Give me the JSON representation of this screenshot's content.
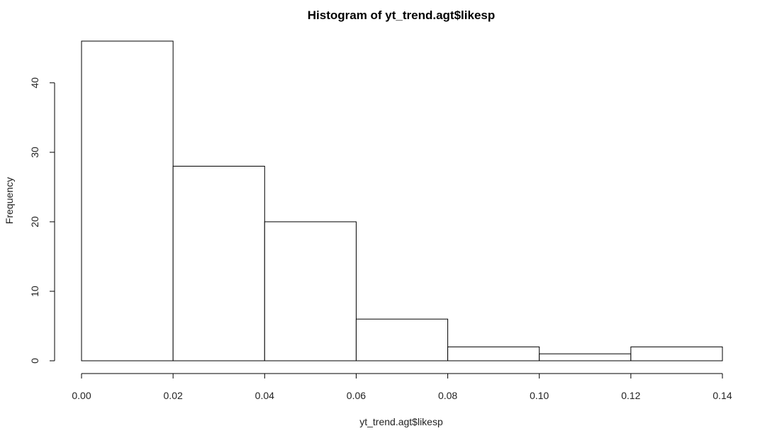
{
  "chart_data": {
    "type": "bar",
    "title": "Histogram of yt_trend.agt$likesp",
    "xlabel": "yt_trend.agt$likesp",
    "ylabel": "Frequency",
    "bins": [
      {
        "start": 0.0,
        "end": 0.02,
        "count": 46
      },
      {
        "start": 0.02,
        "end": 0.04,
        "count": 28
      },
      {
        "start": 0.04,
        "end": 0.06,
        "count": 20
      },
      {
        "start": 0.06,
        "end": 0.08,
        "count": 6
      },
      {
        "start": 0.08,
        "end": 0.1,
        "count": 2
      },
      {
        "start": 0.1,
        "end": 0.12,
        "count": 1
      },
      {
        "start": 0.12,
        "end": 0.14,
        "count": 2
      }
    ],
    "xlim": [
      0,
      0.14
    ],
    "ylim": [
      0,
      46
    ],
    "x_ticks": [
      "0.00",
      "0.02",
      "0.04",
      "0.06",
      "0.08",
      "0.10",
      "0.12",
      "0.14"
    ],
    "y_ticks": [
      "0",
      "10",
      "20",
      "30",
      "40"
    ],
    "grid": false,
    "legend": "none"
  }
}
